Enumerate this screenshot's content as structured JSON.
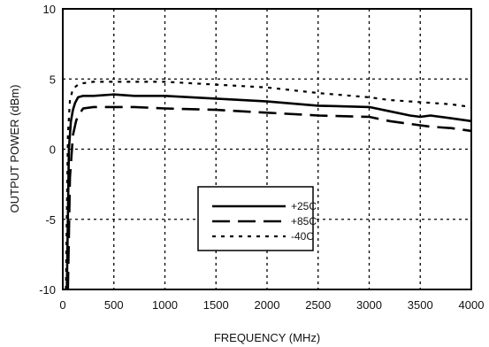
{
  "chart_data": {
    "type": "line",
    "title": "",
    "xlabel": "FREQUENCY (MHz)",
    "ylabel": "OUTPUT POWER (dBm)",
    "xlim": [
      0,
      4000
    ],
    "ylim": [
      -10,
      10
    ],
    "x_ticks": [
      "0",
      "500",
      "1000",
      "1500",
      "2000",
      "2500",
      "3000",
      "3500",
      "4000"
    ],
    "y_ticks": [
      "10",
      "5",
      "0",
      "-5",
      "-10"
    ],
    "grid": "dotted",
    "legend_position": "lower-center",
    "series": [
      {
        "name": "+25C",
        "style": "solid",
        "x": [
          40,
          60,
          80,
          100,
          120,
          150,
          200,
          300,
          500,
          700,
          1000,
          1500,
          2000,
          2500,
          3000,
          3200,
          3400,
          3500,
          3600,
          3800,
          4000
        ],
        "y": [
          -10,
          0,
          2,
          2.8,
          3.3,
          3.7,
          3.8,
          3.8,
          3.9,
          3.8,
          3.8,
          3.6,
          3.4,
          3.1,
          3.0,
          2.7,
          2.4,
          2.3,
          2.4,
          2.2,
          2.0
        ]
      },
      {
        "name": "+85C",
        "style": "dashed",
        "x": [
          50,
          70,
          100,
          130,
          150,
          200,
          300,
          500,
          700,
          1000,
          1500,
          2000,
          2500,
          3000,
          3200,
          3400,
          3600,
          3800,
          4000
        ],
        "y": [
          -10,
          -2,
          1.0,
          2.0,
          2.4,
          2.9,
          3.0,
          3.0,
          3.0,
          2.9,
          2.8,
          2.6,
          2.4,
          2.3,
          2.0,
          1.8,
          1.6,
          1.5,
          1.3
        ]
      },
      {
        "name": "-40C",
        "style": "dotted",
        "x": [
          30,
          50,
          70,
          100,
          150,
          200,
          300,
          500,
          1000,
          1500,
          2000,
          2500,
          3000,
          3200,
          3400,
          3600,
          3800,
          4000
        ],
        "y": [
          -10,
          1,
          3.5,
          4.3,
          4.6,
          4.7,
          4.8,
          4.8,
          4.8,
          4.6,
          4.4,
          4.0,
          3.7,
          3.5,
          3.4,
          3.3,
          3.2,
          3.0
        ]
      }
    ]
  }
}
